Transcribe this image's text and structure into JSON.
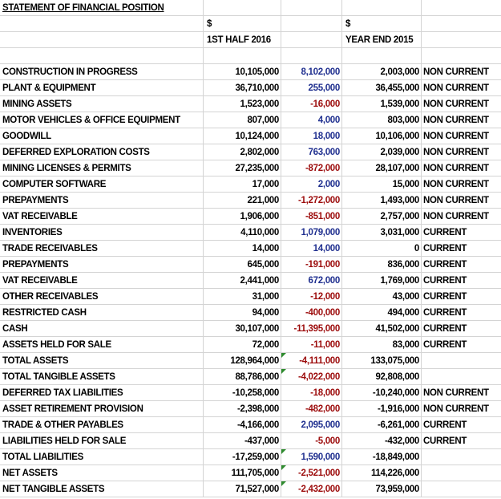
{
  "title": "STATEMENT OF FINANCIAL POSITION",
  "currency_h1": "$",
  "currency_ye": "$",
  "col_h1": "1ST HALF 2016",
  "col_ye": "YEAR END 2015",
  "colors": {
    "positive_change": "#1f2f8f",
    "negative_change": "#9c0b0b",
    "comment_marker": "#2e8b2e"
  },
  "rows": [
    {
      "label": "CONSTRUCTION IN PROGRESS",
      "h1": "10,105,000",
      "chg": "8,102,000",
      "ye": "2,003,000",
      "cls": "NON CURRENT"
    },
    {
      "label": "PLANT & EQUIPMENT",
      "h1": "36,710,000",
      "chg": "255,000",
      "ye": "36,455,000",
      "cls": "NON CURRENT"
    },
    {
      "label": "MINING ASSETS",
      "h1": "1,523,000",
      "chg": "-16,000",
      "ye": "1,539,000",
      "cls": "NON CURRENT"
    },
    {
      "label": "MOTOR VEHICLES & OFFICE EQUIPMENT",
      "h1": "807,000",
      "chg": "4,000",
      "ye": "803,000",
      "cls": "NON CURRENT"
    },
    {
      "label": "GOODWILL",
      "h1": "10,124,000",
      "chg": "18,000",
      "ye": "10,106,000",
      "cls": "NON CURRENT"
    },
    {
      "label": "DEFERRED EXPLORATION COSTS",
      "h1": "2,802,000",
      "chg": "763,000",
      "ye": "2,039,000",
      "cls": "NON CURRENT"
    },
    {
      "label": "MINING LICENSES & PERMITS",
      "h1": "27,235,000",
      "chg": "-872,000",
      "ye": "28,107,000",
      "cls": "NON CURRENT"
    },
    {
      "label": "COMPUTER SOFTWARE",
      "h1": "17,000",
      "chg": "2,000",
      "ye": "15,000",
      "cls": "NON CURRENT"
    },
    {
      "label": "PREPAYMENTS",
      "h1": "221,000",
      "chg": "-1,272,000",
      "ye": "1,493,000",
      "cls": "NON CURRENT"
    },
    {
      "label": "VAT RECEIVABLE",
      "h1": "1,906,000",
      "chg": "-851,000",
      "ye": "2,757,000",
      "cls": "NON CURRENT"
    },
    {
      "label": "INVENTORIES",
      "h1": "4,110,000",
      "chg": "1,079,000",
      "ye": "3,031,000",
      "cls": "CURRENT"
    },
    {
      "label": "TRADE RECEIVABLES",
      "h1": "14,000",
      "chg": "14,000",
      "ye": "0",
      "cls": "CURRENT"
    },
    {
      "label": "PREPAYMENTS",
      "h1": "645,000",
      "chg": "-191,000",
      "ye": "836,000",
      "cls": "CURRENT"
    },
    {
      "label": "VAT RECEIVABLE",
      "h1": "2,441,000",
      "chg": "672,000",
      "ye": "1,769,000",
      "cls": "CURRENT"
    },
    {
      "label": "OTHER RECEIVABLES",
      "h1": "31,000",
      "chg": "-12,000",
      "ye": "43,000",
      "cls": "CURRENT"
    },
    {
      "label": "RESTRICTED CASH",
      "h1": "94,000",
      "chg": "-400,000",
      "ye": "494,000",
      "cls": "CURRENT"
    },
    {
      "label": "CASH",
      "h1": "30,107,000",
      "chg": "-11,395,000",
      "ye": "41,502,000",
      "cls": "CURRENT"
    },
    {
      "label": "ASSETS HELD FOR SALE",
      "h1": "72,000",
      "chg": "-11,000",
      "ye": "83,000",
      "cls": "CURRENT"
    },
    {
      "label": "TOTAL ASSETS",
      "h1": "128,964,000",
      "chg": "-4,111,000",
      "ye": "133,075,000",
      "cls": "",
      "marker": true
    },
    {
      "label": "TOTAL TANGIBLE ASSETS",
      "h1": "88,786,000",
      "chg": "-4,022,000",
      "ye": "92,808,000",
      "cls": "",
      "marker": true
    },
    {
      "label": "DEFERRED TAX LIABILITIES",
      "h1": "-10,258,000",
      "chg": "-18,000",
      "ye": "-10,240,000",
      "cls": "NON CURRENT"
    },
    {
      "label": "ASSET RETIREMENT PROVISION",
      "h1": "-2,398,000",
      "chg": "-482,000",
      "ye": "-1,916,000",
      "cls": "NON CURRENT"
    },
    {
      "label": "TRADE & OTHER PAYABLES",
      "h1": "-4,166,000",
      "chg": "2,095,000",
      "ye": "-6,261,000",
      "cls": "CURRENT"
    },
    {
      "label": "LIABILITIES HELD FOR SALE",
      "h1": "-437,000",
      "chg": "-5,000",
      "ye": "-432,000",
      "cls": "CURRENT"
    },
    {
      "label": "TOTAL LIABILITIES",
      "h1": "-17,259,000",
      "chg": "1,590,000",
      "ye": "-18,849,000",
      "cls": "",
      "marker": true
    },
    {
      "label": "NET ASSETS",
      "h1": "111,705,000",
      "chg": "-2,521,000",
      "ye": "114,226,000",
      "cls": "",
      "marker": true
    },
    {
      "label": "NET TANGIBLE ASSETS",
      "h1": "71,527,000",
      "chg": "-2,432,000",
      "ye": "73,959,000",
      "cls": "",
      "marker": true
    }
  ]
}
